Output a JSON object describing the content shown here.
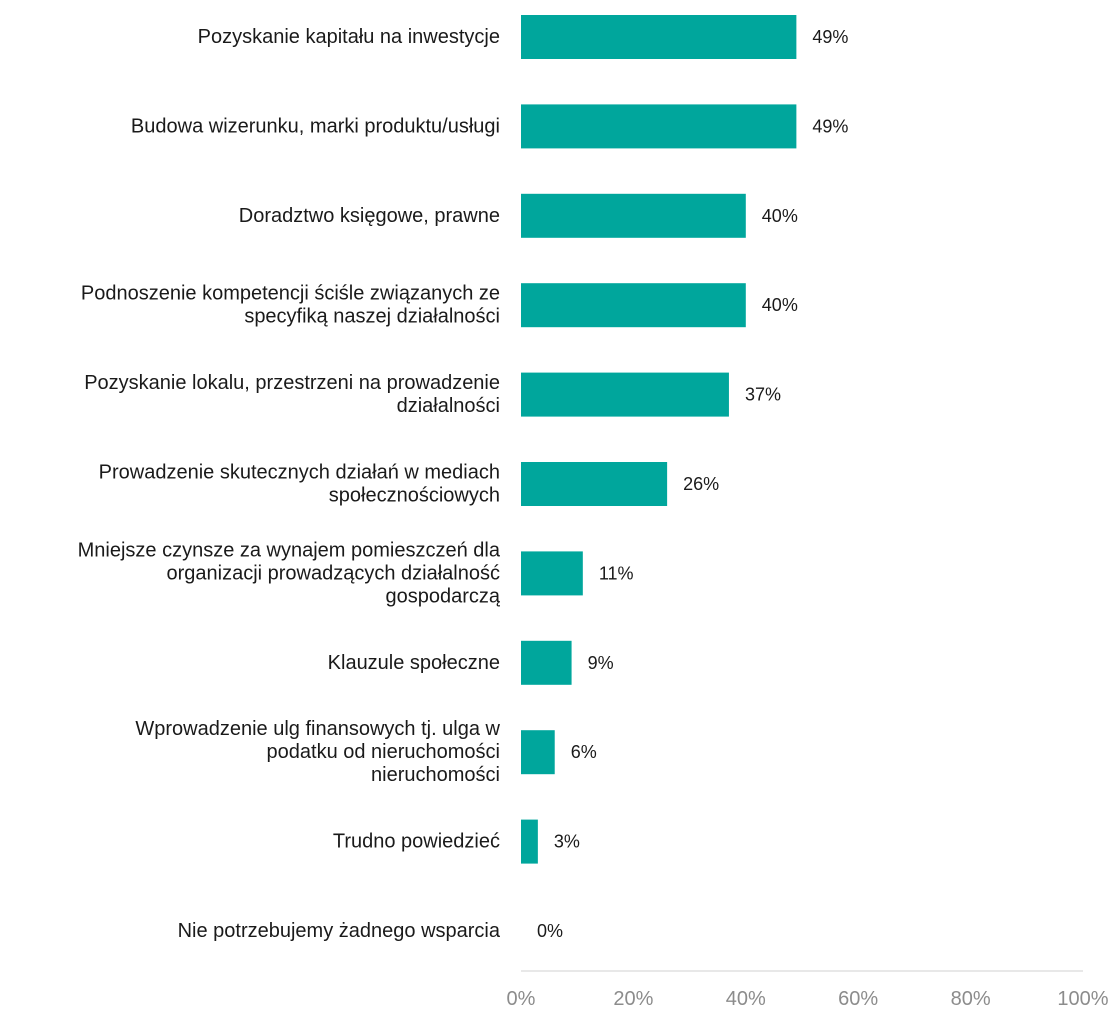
{
  "chart_data": {
    "type": "bar",
    "orientation": "horizontal",
    "categories": [
      [
        "Pozyskanie kapitału na inwestycje"
      ],
      [
        "Budowa wizerunku, marki produktu/usługi"
      ],
      [
        "Doradztwo księgowe, prawne"
      ],
      [
        "Podnoszenie kompetencji ściśle związanych ze",
        "specyfiką naszej działalności"
      ],
      [
        "Pozyskanie lokalu, przestrzeni na prowadzenie",
        "działalności"
      ],
      [
        "Prowadzenie skutecznych działań w mediach",
        "społecznościowych"
      ],
      [
        "Mniejsze czynsze za wynajem pomieszczeń dla",
        "organizacji prowadzących działalność",
        "gospodarczą"
      ],
      [
        "Klauzule społeczne"
      ],
      [
        "Wprowadzenie ulg finansowych tj. ulga w",
        "podatku od nieruchomości",
        "nieruchomości"
      ],
      [
        "Trudno powiedzieć"
      ],
      [
        "Nie potrzebujemy żadnego wsparcia"
      ]
    ],
    "values": [
      49,
      49,
      40,
      40,
      37,
      26,
      11,
      9,
      6,
      3,
      0
    ],
    "value_labels": [
      "49%",
      "49%",
      "40%",
      "40%",
      "37%",
      "26%",
      "11%",
      "9%",
      "6%",
      "3%",
      "0%"
    ],
    "xlim": [
      0,
      100
    ],
    "x_ticks": [
      0,
      20,
      40,
      60,
      80,
      100
    ],
    "x_tick_labels": [
      "0%",
      "20%",
      "40%",
      "60%",
      "80%",
      "100%"
    ],
    "grid": false,
    "legend": "none",
    "bar_color": "#00a69c",
    "axis_color": "#d0d0d0",
    "tick_label_color": "#8c8c8c"
  }
}
